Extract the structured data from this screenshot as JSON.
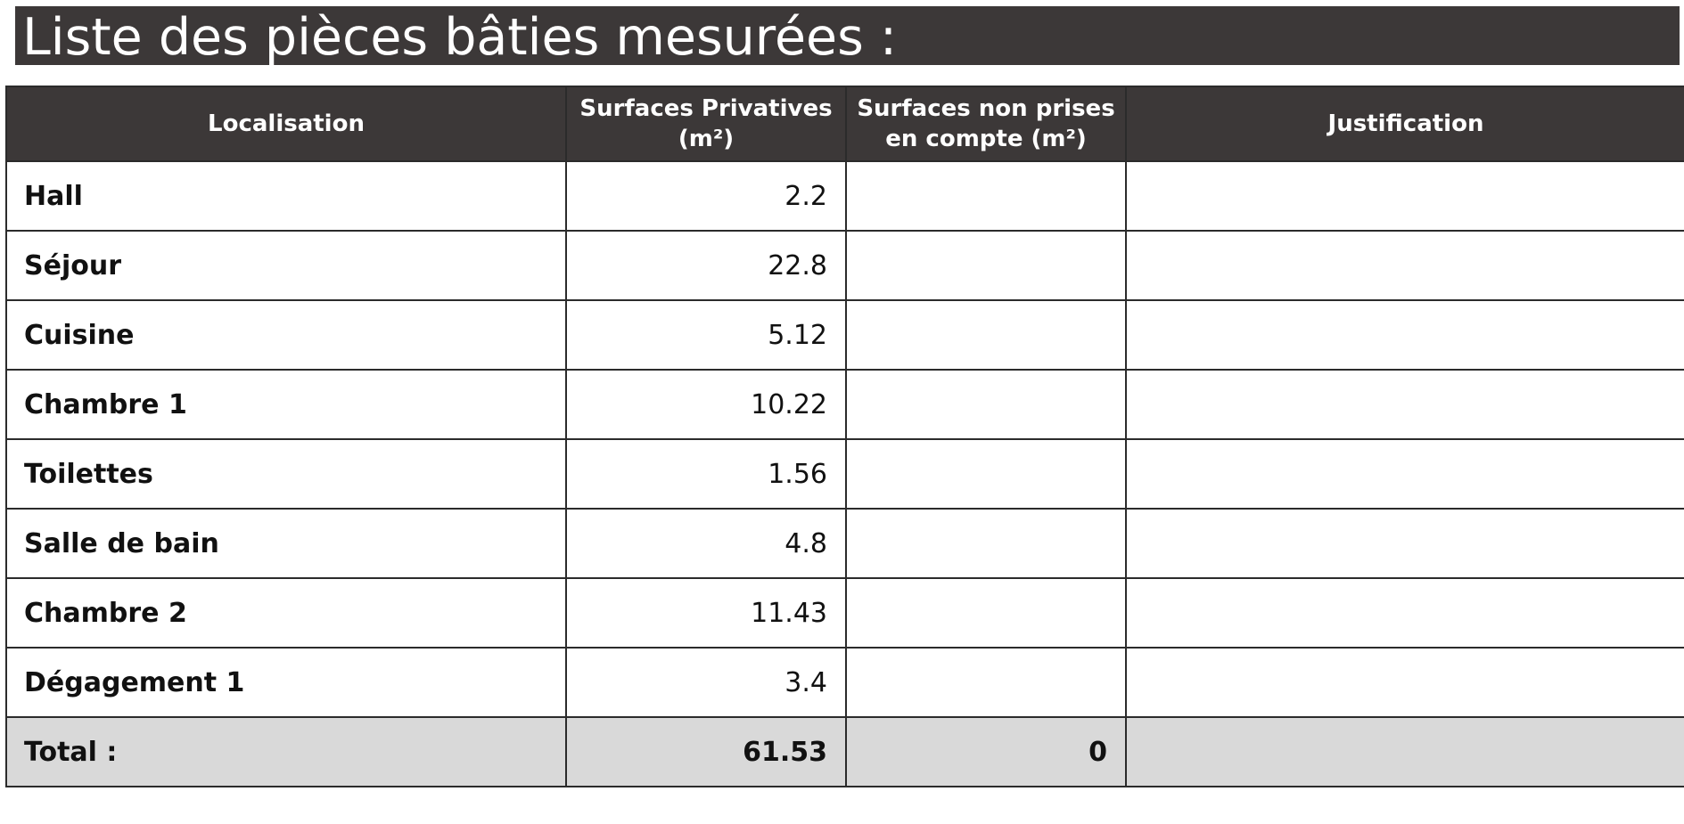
{
  "title": "Liste des pièces bâties mesurées :",
  "table": {
    "headers": {
      "localisation": "Localisation",
      "privatives_line1": "Surfaces Privatives",
      "privatives_line2": "(m²)",
      "non_prises_line1": "Surfaces non prises",
      "non_prises_line2": "en compte (m²)",
      "justification": "Justification"
    },
    "rows": [
      {
        "localisation": "Hall",
        "privatives": "2.2",
        "non_prises": "",
        "justification": ""
      },
      {
        "localisation": "Séjour",
        "privatives": "22.8",
        "non_prises": "",
        "justification": ""
      },
      {
        "localisation": "Cuisine",
        "privatives": "5.12",
        "non_prises": "",
        "justification": ""
      },
      {
        "localisation": "Chambre 1",
        "privatives": "10.22",
        "non_prises": "",
        "justification": ""
      },
      {
        "localisation": "Toilettes",
        "privatives": "1.56",
        "non_prises": "",
        "justification": ""
      },
      {
        "localisation": "Salle de bain",
        "privatives": "4.8",
        "non_prises": "",
        "justification": ""
      },
      {
        "localisation": "Chambre 2",
        "privatives": "11.43",
        "non_prises": "",
        "justification": ""
      },
      {
        "localisation": "Dégagement 1",
        "privatives": "3.4",
        "non_prises": "",
        "justification": ""
      }
    ],
    "total": {
      "label": "Total :",
      "privatives": "61.53",
      "non_prises": "0",
      "justification": ""
    }
  },
  "colors": {
    "header_bg": "#3c3838",
    "header_text": "#ffffff",
    "total_bg": "#d9d9d9",
    "border": "#2b2b2b"
  }
}
